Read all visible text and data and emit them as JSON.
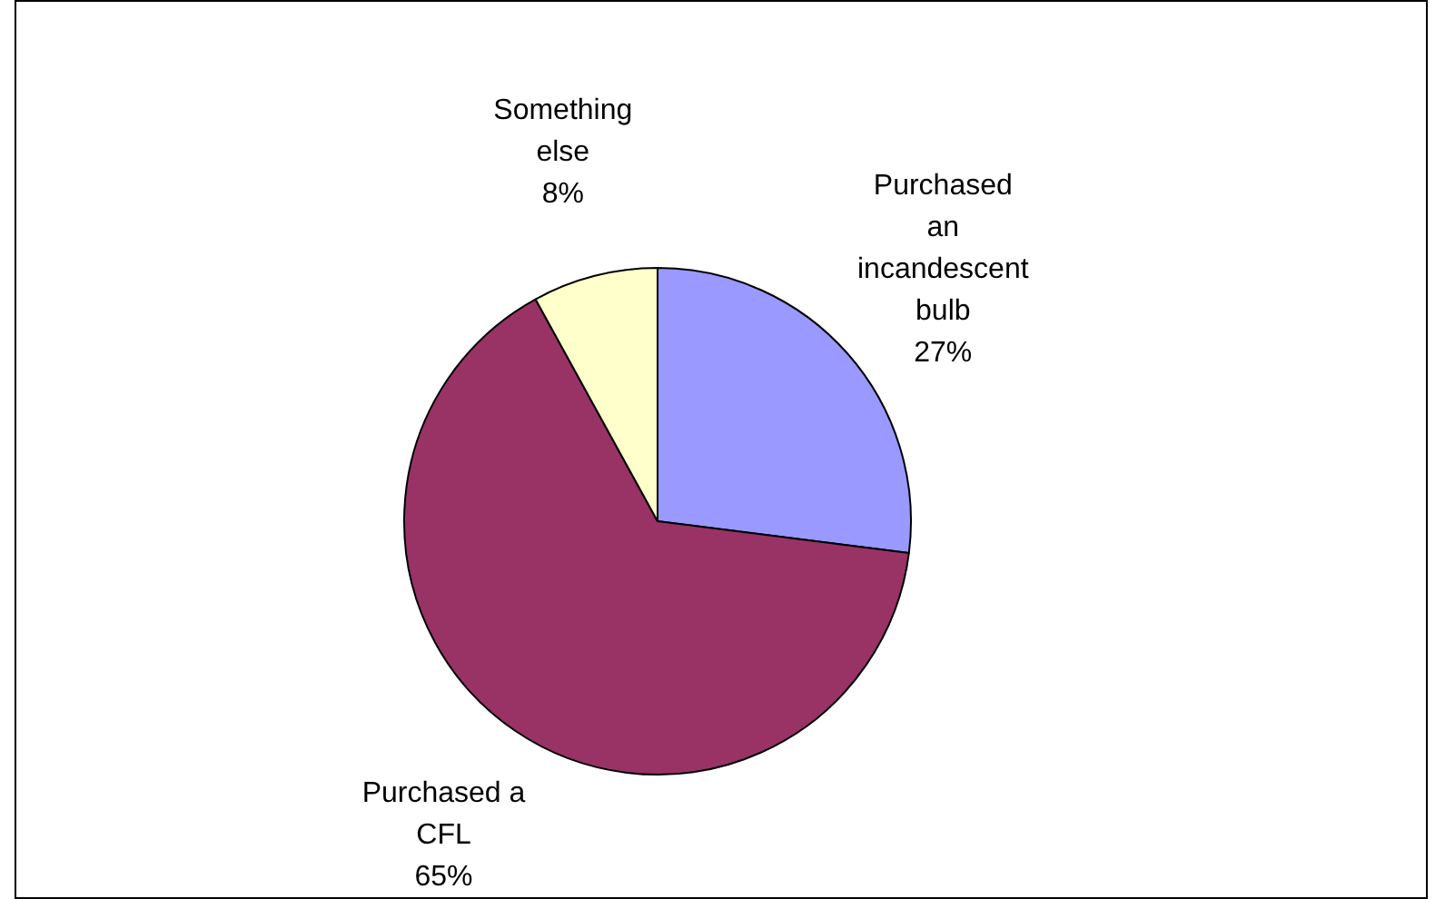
{
  "chart_data": {
    "type": "pie",
    "categories": [
      "Purchased an incandescent bulb",
      "Purchased a CFL",
      "Something else"
    ],
    "values": [
      27,
      65,
      8
    ],
    "colors": [
      "#9999ff",
      "#993366",
      "#ffffcc"
    ],
    "value_labels": [
      "27%",
      "65%",
      "8%"
    ],
    "legend": false
  }
}
